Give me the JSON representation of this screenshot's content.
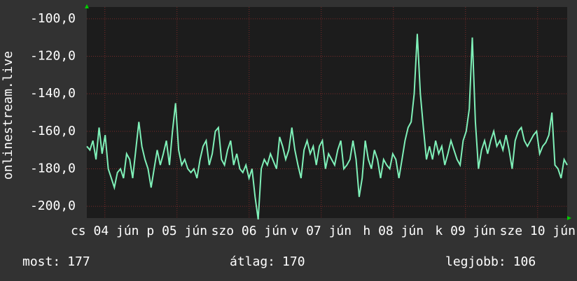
{
  "chart_data": {
    "type": "line",
    "y_label": "onlinestream.live",
    "xlim": [
      0,
      6.66
    ],
    "xticks": [
      {
        "value": 0.25,
        "label": "cs 04 jún"
      },
      {
        "value": 1.25,
        "label": "p 05 jún"
      },
      {
        "value": 2.25,
        "label": "szo 06 jún"
      },
      {
        "value": 3.25,
        "label": "v 07 jún"
      },
      {
        "value": 4.25,
        "label": "h 08 jún"
      },
      {
        "value": 5.25,
        "label": "k 09 jún"
      },
      {
        "value": 6.25,
        "label": "sze 10 jún"
      }
    ],
    "ylim": [
      -206.3,
      -93.7
    ],
    "yticks": [
      {
        "value": -100,
        "label": "-100,0"
      },
      {
        "value": -120,
        "label": "-120,0"
      },
      {
        "value": -140,
        "label": "-140,0"
      },
      {
        "value": -160,
        "label": "-160,0"
      },
      {
        "value": -180,
        "label": "-180,0"
      },
      {
        "value": -200,
        "label": "-200,0"
      }
    ],
    "grid": true,
    "series": [
      {
        "color": "#7ff0b8",
        "values": [
          -168,
          -170,
          -165,
          -175,
          -158,
          -172,
          -162,
          -180,
          -185,
          -190,
          -182,
          -180,
          -185,
          -172,
          -175,
          -185,
          -170,
          -155,
          -168,
          -175,
          -180,
          -190,
          -180,
          -170,
          -178,
          -172,
          -165,
          -178,
          -160,
          -145,
          -170,
          -178,
          -175,
          -180,
          -182,
          -180,
          -185,
          -175,
          -168,
          -165,
          -178,
          -172,
          -160,
          -158,
          -175,
          -178,
          -170,
          -165,
          -178,
          -172,
          -180,
          -182,
          -178,
          -185,
          -180,
          -195,
          -207,
          -180,
          -175,
          -178,
          -172,
          -176,
          -180,
          -163,
          -168,
          -175,
          -170,
          -158,
          -170,
          -178,
          -185,
          -170,
          -165,
          -172,
          -168,
          -178,
          -168,
          -165,
          -180,
          -172,
          -175,
          -178,
          -170,
          -165,
          -180,
          -178,
          -175,
          -165,
          -175,
          -195,
          -185,
          -165,
          -175,
          -180,
          -170,
          -175,
          -185,
          -175,
          -178,
          -180,
          -172,
          -175,
          -185,
          -175,
          -165,
          -158,
          -155,
          -140,
          -108,
          -140,
          -158,
          -175,
          -168,
          -175,
          -165,
          -172,
          -168,
          -178,
          -172,
          -165,
          -170,
          -175,
          -178,
          -165,
          -160,
          -148,
          -110,
          -155,
          -180,
          -170,
          -165,
          -172,
          -165,
          -160,
          -168,
          -165,
          -170,
          -162,
          -170,
          -180,
          -165,
          -160,
          -158,
          -165,
          -168,
          -165,
          -162,
          -160,
          -172,
          -168,
          -166,
          -162,
          -150,
          -178,
          -180,
          -185,
          -175,
          -178
        ]
      }
    ],
    "stats": [
      {
        "label": "most:",
        "value": 177
      },
      {
        "label": "átlag:",
        "value": 170
      },
      {
        "label": "legjobb:",
        "value": 106
      }
    ]
  }
}
